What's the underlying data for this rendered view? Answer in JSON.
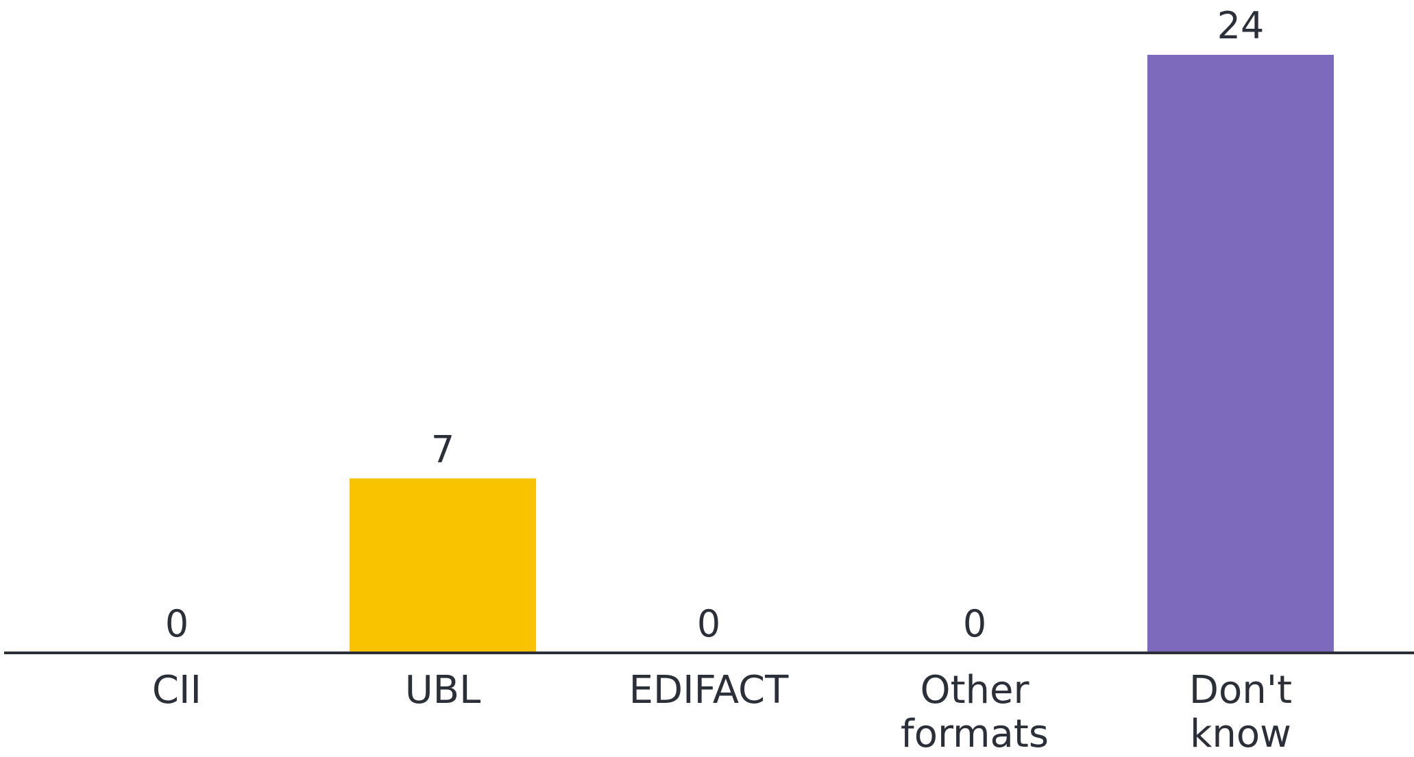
{
  "chart_data": {
    "type": "bar",
    "categories": [
      "CII",
      "UBL",
      "EDIFACT",
      "Other formats",
      "Don't know"
    ],
    "values": [
      0,
      7,
      0,
      0,
      24
    ],
    "data_labels": [
      "0",
      "7",
      "0",
      "0",
      "24"
    ],
    "category_label_lines": [
      [
        "CII"
      ],
      [
        "UBL"
      ],
      [
        "EDIFACT"
      ],
      [
        "Other",
        "formats"
      ],
      [
        "Don't",
        "know"
      ]
    ],
    "colors": [
      "#F9C300",
      "#F9C300",
      "#F9C300",
      "#F9C300",
      "#7E6ABD"
    ],
    "axis_color": "#2b2f38",
    "ylim": [
      0,
      24
    ],
    "grid": false,
    "legend": "none"
  }
}
